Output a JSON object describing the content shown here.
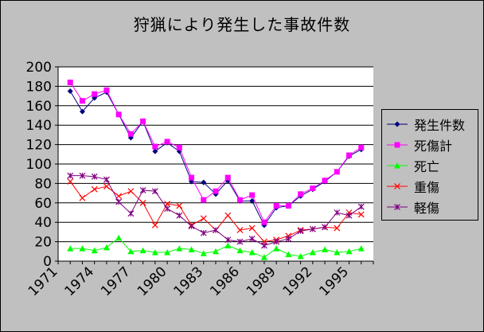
{
  "chart_data": {
    "type": "line",
    "title": "狩猟により発生した事故件数",
    "xlabel": "",
    "ylabel": "",
    "ylim": [
      0,
      200
    ],
    "yticks": [
      0,
      20,
      40,
      60,
      80,
      100,
      120,
      140,
      160,
      180,
      200
    ],
    "xtick_labels": [
      "1971",
      "1974",
      "1977",
      "1980",
      "1983",
      "1986",
      "1989",
      "1992",
      "1995"
    ],
    "grid": "horizontal",
    "legend_position": "right",
    "x": [
      1972,
      1973,
      1974,
      1975,
      1976,
      1977,
      1978,
      1979,
      1980,
      1981,
      1982,
      1983,
      1984,
      1985,
      1986,
      1987,
      1988,
      1989,
      1990,
      1991,
      1992,
      1993,
      1994,
      1995,
      1996
    ],
    "series": [
      {
        "name": "発生件数",
        "color": "#000080",
        "marker": "diamond",
        "values": [
          175,
          154,
          168,
          174,
          151,
          127,
          144,
          113,
          122,
          113,
          82,
          81,
          69,
          83,
          62,
          62,
          37,
          55,
          57,
          67,
          74,
          82,
          92,
          108,
          115
        ]
      },
      {
        "name": "死傷計",
        "color": "#ff00ff",
        "marker": "square",
        "values": [
          184,
          165,
          172,
          176,
          151,
          131,
          144,
          118,
          123,
          117,
          86,
          63,
          72,
          86,
          63,
          68,
          40,
          57,
          57,
          69,
          75,
          83,
          92,
          109,
          117
        ]
      },
      {
        "name": "死亡",
        "color": "#00ff00",
        "marker": "triangle",
        "values": [
          13,
          13,
          11,
          14,
          24,
          10,
          11,
          9,
          9,
          13,
          12,
          8,
          10,
          16,
          11,
          9,
          4,
          13,
          7,
          5,
          9,
          12,
          9,
          10,
          13
        ]
      },
      {
        "name": "重傷",
        "color": "#ff0000",
        "marker": "x",
        "values": [
          82,
          65,
          74,
          77,
          67,
          72,
          60,
          37,
          59,
          57,
          37,
          44,
          32,
          47,
          32,
          34,
          20,
          22,
          26,
          32,
          33,
          35,
          34,
          50,
          48
        ]
      },
      {
        "name": "軽傷",
        "color": "#800080",
        "marker": "star",
        "values": [
          88,
          88,
          87,
          84,
          61,
          49,
          73,
          72,
          54,
          47,
          36,
          29,
          32,
          22,
          20,
          23,
          16,
          20,
          23,
          31,
          33,
          35,
          50,
          47,
          56
        ]
      }
    ]
  }
}
